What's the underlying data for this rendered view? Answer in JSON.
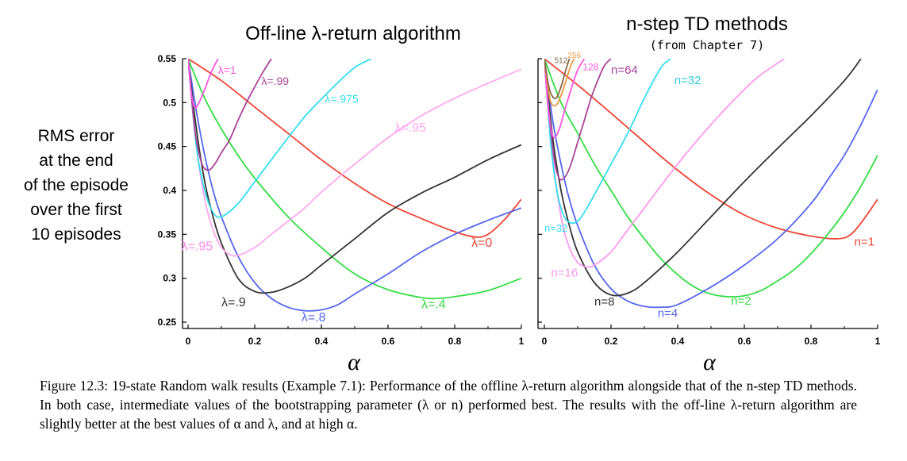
{
  "ylabel_lines": [
    "RMS error",
    "at the end",
    "of the episode",
    "over the first",
    "10 episodes"
  ],
  "chart_data": [
    {
      "type": "line",
      "title": "Off-line λ-return algorithm",
      "subtitle": "",
      "xlabel": "α",
      "ylabel": "RMS error at the end of the episode over the first 10 episodes",
      "xlim": [
        0,
        1
      ],
      "ylim": [
        0.25,
        0.55
      ],
      "xticks": [
        "0",
        "0.2",
        "0.4",
        "0.6",
        "0.8",
        "1"
      ],
      "yticks": [
        "0.25",
        "0.3",
        "0.35",
        "0.4",
        "0.45",
        "0.5",
        "0.55"
      ],
      "series": [
        {
          "name": "λ=0",
          "color": "#ee4433",
          "label_at": [
            0.85,
            0.336
          ],
          "label_size": 16,
          "x": [
            0,
            0.1,
            0.2,
            0.3,
            0.4,
            0.5,
            0.6,
            0.7,
            0.8,
            0.86,
            0.9,
            0.95,
            1.0
          ],
          "y": [
            0.55,
            0.525,
            0.495,
            0.465,
            0.435,
            0.408,
            0.385,
            0.368,
            0.353,
            0.347,
            0.35,
            0.367,
            0.39
          ]
        },
        {
          "name": "λ=.4",
          "color": "#33dd44",
          "label_at": [
            0.7,
            0.266
          ],
          "label_size": 16,
          "x": [
            0,
            0.05,
            0.1,
            0.15,
            0.2,
            0.3,
            0.4,
            0.5,
            0.6,
            0.7,
            0.75,
            0.8,
            0.9,
            1.0
          ],
          "y": [
            0.55,
            0.505,
            0.47,
            0.44,
            0.414,
            0.37,
            0.335,
            0.305,
            0.287,
            0.278,
            0.277,
            0.279,
            0.286,
            0.3
          ]
        },
        {
          "name": "λ=.8",
          "color": "#5566ee",
          "label_at": [
            0.34,
            0.251
          ],
          "label_size": 16,
          "x": [
            0,
            0.025,
            0.05,
            0.075,
            0.1,
            0.15,
            0.2,
            0.25,
            0.3,
            0.35,
            0.4,
            0.45,
            0.5,
            0.6,
            0.7,
            0.8,
            0.9,
            1.0
          ],
          "y": [
            0.55,
            0.49,
            0.44,
            0.4,
            0.37,
            0.325,
            0.295,
            0.277,
            0.267,
            0.263,
            0.264,
            0.27,
            0.282,
            0.305,
            0.33,
            0.35,
            0.366,
            0.38
          ]
        },
        {
          "name": "λ=.9",
          "color": "#333333",
          "label_at": [
            0.1,
            0.268
          ],
          "label_size": 16,
          "x": [
            0,
            0.025,
            0.05,
            0.075,
            0.1,
            0.15,
            0.2,
            0.25,
            0.3,
            0.35,
            0.4,
            0.5,
            0.6,
            0.7,
            0.8,
            0.9,
            1.0
          ],
          "y": [
            0.55,
            0.47,
            0.41,
            0.37,
            0.34,
            0.3,
            0.285,
            0.284,
            0.29,
            0.3,
            0.315,
            0.345,
            0.375,
            0.397,
            0.415,
            0.435,
            0.452
          ]
        },
        {
          "name": "λ=.95",
          "color": "#ffa8f0",
          "label_at": [
            0.62,
            0.467
          ],
          "label_size": 16,
          "x": [
            0,
            0.025,
            0.05,
            0.075,
            0.1,
            0.125,
            0.15,
            0.2,
            0.25,
            0.3,
            0.35,
            0.4,
            0.5,
            0.6,
            0.7,
            0.8,
            0.9,
            1.0
          ],
          "y": [
            0.55,
            0.45,
            0.39,
            0.355,
            0.335,
            0.327,
            0.326,
            0.335,
            0.35,
            0.365,
            0.38,
            0.398,
            0.43,
            0.46,
            0.485,
            0.505,
            0.522,
            0.538
          ]
        },
        {
          "name": "λ=.95",
          "color": "#ff88ee",
          "label_at": [
            -0.02,
            0.332
          ],
          "label_size": 16,
          "x": [],
          "y": []
        },
        {
          "name": "λ=.975",
          "color": "#33ddee",
          "label_at": [
            0.41,
            0.5
          ],
          "label_size": 14,
          "x": [
            0,
            0.025,
            0.05,
            0.075,
            0.1,
            0.15,
            0.2,
            0.25,
            0.3,
            0.35,
            0.4,
            0.45,
            0.5,
            0.55
          ],
          "y": [
            0.55,
            0.45,
            0.4,
            0.375,
            0.37,
            0.385,
            0.41,
            0.435,
            0.46,
            0.484,
            0.504,
            0.523,
            0.54,
            0.55
          ]
        },
        {
          "name": "λ=.99",
          "color": "#aa4499",
          "label_at": [
            0.22,
            0.52
          ],
          "label_size": 14,
          "x": [
            0,
            0.02,
            0.04,
            0.06,
            0.08,
            0.1,
            0.125,
            0.15,
            0.175,
            0.2,
            0.225,
            0.25
          ],
          "y": [
            0.55,
            0.47,
            0.432,
            0.423,
            0.43,
            0.443,
            0.458,
            0.48,
            0.5,
            0.518,
            0.535,
            0.55
          ]
        },
        {
          "name": "λ=1",
          "color": "#ff55dd",
          "label_at": [
            0.09,
            0.533
          ],
          "label_size": 14,
          "x": [
            0,
            0.01,
            0.02,
            0.03,
            0.05,
            0.07,
            0.09
          ],
          "y": [
            0.55,
            0.51,
            0.495,
            0.498,
            0.515,
            0.535,
            0.55
          ]
        }
      ]
    },
    {
      "type": "line",
      "title": "n-step TD methods",
      "subtitle": "(from Chapter 7)",
      "xlabel": "α",
      "ylabel": "",
      "xlim": [
        0,
        1
      ],
      "ylim": [
        0.25,
        0.55
      ],
      "xticks": [
        "0",
        "0.2",
        "0.4",
        "0.6",
        "0.8",
        "1"
      ],
      "yticks": [],
      "series": [
        {
          "name": "n=1",
          "color": "#ee4433",
          "label_at": [
            0.93,
            0.337
          ],
          "label_size": 15,
          "x": [
            0,
            0.1,
            0.2,
            0.3,
            0.4,
            0.5,
            0.6,
            0.7,
            0.8,
            0.88,
            0.92,
            0.96,
            1.0
          ],
          "y": [
            0.55,
            0.52,
            0.488,
            0.455,
            0.423,
            0.395,
            0.372,
            0.357,
            0.348,
            0.345,
            0.35,
            0.368,
            0.39
          ]
        },
        {
          "name": "n=2",
          "color": "#33dd44",
          "label_at": [
            0.56,
            0.27
          ],
          "label_size": 15,
          "x": [
            0,
            0.05,
            0.1,
            0.15,
            0.2,
            0.25,
            0.3,
            0.35,
            0.4,
            0.45,
            0.5,
            0.55,
            0.6,
            0.65,
            0.7,
            0.75,
            0.8,
            0.85,
            0.9,
            0.95,
            1.0
          ],
          "y": [
            0.55,
            0.5,
            0.465,
            0.43,
            0.4,
            0.37,
            0.345,
            0.322,
            0.304,
            0.29,
            0.282,
            0.279,
            0.28,
            0.286,
            0.297,
            0.31,
            0.328,
            0.35,
            0.375,
            0.405,
            0.44
          ]
        },
        {
          "name": "n=4",
          "color": "#5566ee",
          "label_at": [
            0.34,
            0.256
          ],
          "label_size": 15,
          "x": [
            0,
            0.025,
            0.05,
            0.075,
            0.1,
            0.15,
            0.2,
            0.25,
            0.3,
            0.35,
            0.4,
            0.5,
            0.6,
            0.7,
            0.8,
            0.85,
            0.9,
            0.95,
            1.0
          ],
          "y": [
            0.55,
            0.48,
            0.43,
            0.39,
            0.36,
            0.315,
            0.288,
            0.274,
            0.268,
            0.267,
            0.27,
            0.29,
            0.315,
            0.345,
            0.385,
            0.412,
            0.44,
            0.475,
            0.515
          ]
        },
        {
          "name": "n=8",
          "color": "#333333",
          "label_at": [
            0.15,
            0.269
          ],
          "label_size": 15,
          "x": [
            0,
            0.025,
            0.05,
            0.075,
            0.1,
            0.15,
            0.2,
            0.25,
            0.3,
            0.4,
            0.5,
            0.6,
            0.7,
            0.8,
            0.9,
            0.95
          ],
          "y": [
            0.55,
            0.46,
            0.4,
            0.36,
            0.33,
            0.295,
            0.281,
            0.283,
            0.295,
            0.33,
            0.37,
            0.41,
            0.448,
            0.485,
            0.525,
            0.55
          ]
        },
        {
          "name": "n=16",
          "color": "#ff99ee",
          "label_at": [
            0.02,
            0.302
          ],
          "label_size": 15,
          "x": [
            0,
            0.025,
            0.05,
            0.075,
            0.1,
            0.125,
            0.15,
            0.2,
            0.25,
            0.3,
            0.4,
            0.5,
            0.6,
            0.65,
            0.7,
            0.72
          ],
          "y": [
            0.55,
            0.44,
            0.37,
            0.335,
            0.318,
            0.313,
            0.315,
            0.33,
            0.355,
            0.38,
            0.43,
            0.475,
            0.515,
            0.532,
            0.545,
            0.55
          ]
        },
        {
          "name": "n=32",
          "color": "#33ddee",
          "label_at": [
            0.0,
            0.353
          ],
          "label_size": 13,
          "x": [
            0,
            0.02,
            0.04,
            0.06,
            0.08,
            0.1,
            0.12,
            0.15,
            0.2,
            0.25,
            0.3,
            0.35,
            0.38
          ],
          "y": [
            0.55,
            0.45,
            0.395,
            0.37,
            0.363,
            0.365,
            0.375,
            0.395,
            0.43,
            0.465,
            0.505,
            0.54,
            0.55
          ]
        },
        {
          "name": "n=32",
          "color": "#33ccdd",
          "label_at": [
            0.39,
            0.521
          ],
          "label_size": 15,
          "x": [],
          "y": []
        },
        {
          "name": "n=64",
          "color": "#aa4499",
          "label_at": [
            0.2,
            0.533
          ],
          "label_size": 15,
          "x": [
            0,
            0.01,
            0.02,
            0.03,
            0.04,
            0.05,
            0.065,
            0.08,
            0.1,
            0.12,
            0.14,
            0.16,
            0.18,
            0.2
          ],
          "y": [
            0.55,
            0.5,
            0.465,
            0.435,
            0.418,
            0.412,
            0.417,
            0.43,
            0.455,
            0.48,
            0.505,
            0.525,
            0.542,
            0.55
          ]
        },
        {
          "name": "128",
          "color": "#ff55dd",
          "label_at": [
            0.115,
            0.537
          ],
          "label_size": 12,
          "x": [
            0,
            0.01,
            0.02,
            0.03,
            0.045,
            0.06,
            0.08,
            0.1,
            0.12
          ],
          "y": [
            0.55,
            0.5,
            0.47,
            0.46,
            0.47,
            0.49,
            0.515,
            0.537,
            0.55
          ]
        },
        {
          "name": "256",
          "color": "#ee9944",
          "label_at": [
            0.07,
            0.551
          ],
          "label_size": 10,
          "x": [
            0,
            0.01,
            0.02,
            0.035,
            0.05,
            0.065,
            0.08,
            0.09
          ],
          "y": [
            0.55,
            0.52,
            0.5,
            0.497,
            0.508,
            0.525,
            0.543,
            0.55
          ]
        },
        {
          "name": "512",
          "color": "#886644",
          "label_at": [
            0.03,
            0.545
          ],
          "label_size": 10,
          "x": [
            0,
            0.01,
            0.02,
            0.035,
            0.05,
            0.065,
            0.075
          ],
          "y": [
            0.55,
            0.525,
            0.51,
            0.505,
            0.518,
            0.538,
            0.55
          ]
        }
      ]
    }
  ],
  "caption": {
    "prefix": "Figure 12.3:",
    "text": "19-state Random walk results (Example 7.1): Performance of the offline λ-return algorithm alongside that of the n-step TD methods. In both case, intermediate values of the bootstrapping parameter (λ or n) performed best. The results with the off-line λ-return algorithm are slightly better at the best values of α and λ, and at high α."
  }
}
